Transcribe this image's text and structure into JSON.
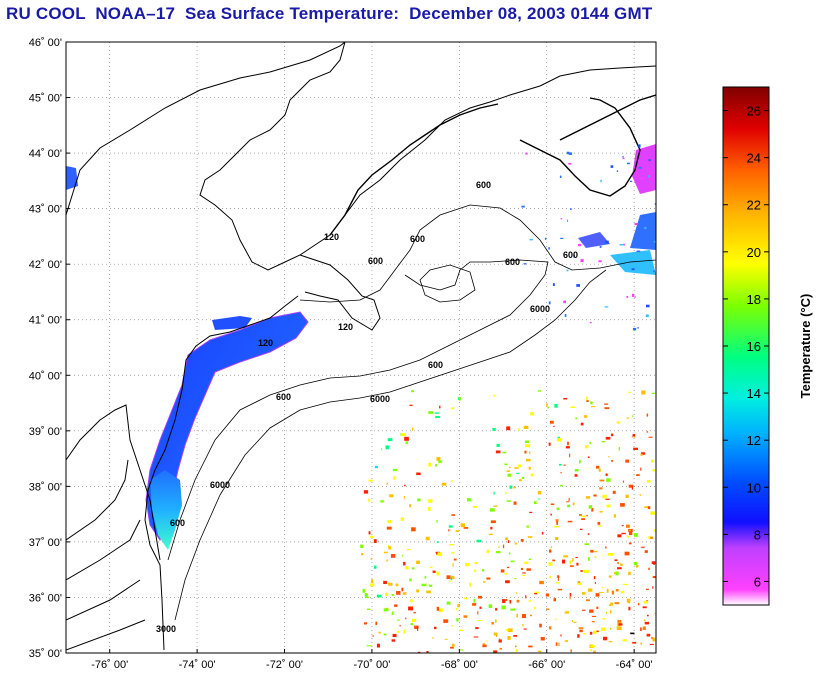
{
  "title": "RU COOL  NOAA–17  Sea Surface Temperature:  December 08, 2003 0144 GMT",
  "map": {
    "lat_labels": [
      "46˚ 00'",
      "45˚ 00'",
      "44˚ 00'",
      "43˚ 00'",
      "42˚ 00'",
      "41˚ 00'",
      "40˚ 00'",
      "39˚ 00'",
      "38˚ 00'",
      "37˚ 00'",
      "36˚ 00'",
      "35˚ 00'"
    ],
    "lon_labels": [
      "-76˚ 00'",
      "-74˚ 00'",
      "-72˚ 00'",
      "-70˚ 00'",
      "-68˚ 00'",
      "-66˚ 00'",
      "-64˚ 00'"
    ],
    "lat_values": [
      46,
      45,
      44,
      43,
      42,
      41,
      40,
      39,
      38,
      37,
      36,
      35
    ],
    "lon_values": [
      -76,
      -74,
      -72,
      -70,
      -68,
      -66,
      -64
    ],
    "lon_range": [
      -77,
      -63.5
    ],
    "lat_range": [
      35,
      46
    ],
    "grid": true,
    "contour_labels": [
      "600",
      "600",
      "600",
      "600",
      "600",
      "600",
      "600",
      "6000",
      "6000",
      "6000",
      "3000",
      "120",
      "120",
      "120",
      "600"
    ]
  },
  "colorbar": {
    "label": "Temperature (°C)",
    "ticks": [
      "26",
      "24",
      "22",
      "20",
      "18",
      "16",
      "14",
      "12",
      "10",
      "8",
      "6"
    ],
    "tick_values": [
      26,
      24,
      22,
      20,
      18,
      16,
      14,
      12,
      10,
      8,
      6
    ],
    "range": [
      5,
      27
    ],
    "palette": [
      "#ffffff",
      "#ff40ff",
      "#c040ff",
      "#0000ff",
      "#0060ff",
      "#00c0ff",
      "#00ffe0",
      "#00ff80",
      "#80ff00",
      "#ffff00",
      "#ffc000",
      "#ff8000",
      "#ff2000",
      "#d00000",
      "#800000"
    ]
  }
}
